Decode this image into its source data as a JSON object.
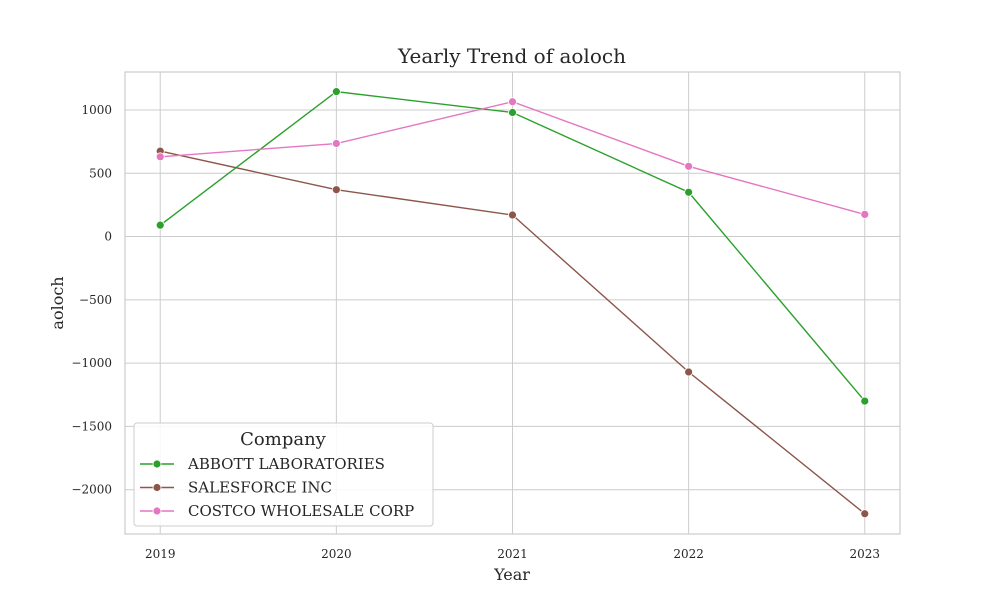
{
  "chart_data": {
    "type": "line",
    "title": "Yearly Trend of aoloch",
    "xlabel": "Year",
    "ylabel": "aoloch",
    "x": [
      2019,
      2020,
      2021,
      2022,
      2023
    ],
    "x_tick_labels": [
      "2019",
      "2020",
      "2021",
      "2022",
      "2023"
    ],
    "y_ticks": [
      1000,
      500,
      0,
      -500,
      -1000,
      -1500,
      -2000
    ],
    "y_tick_labels": [
      "1000",
      "500",
      "0",
      "−500",
      "−1000",
      "−1500",
      "−2000"
    ],
    "ylim": [
      -2350,
      1300
    ],
    "xlim": [
      2018.8,
      2023.2
    ],
    "grid": true,
    "legend": {
      "title": "Company",
      "placement": "lower-left"
    },
    "series": [
      {
        "name": "ABBOTT LABORATORIES",
        "color": "#2ca02c",
        "values": [
          90,
          1145,
          980,
          350,
          -1300
        ]
      },
      {
        "name": "SALESFORCE INC",
        "color": "#8c564b",
        "values": [
          675,
          370,
          170,
          -1070,
          -2190
        ]
      },
      {
        "name": "COSTCO WHOLESALE CORP",
        "color": "#e377c2",
        "values": [
          630,
          735,
          1065,
          555,
          175
        ]
      }
    ]
  }
}
